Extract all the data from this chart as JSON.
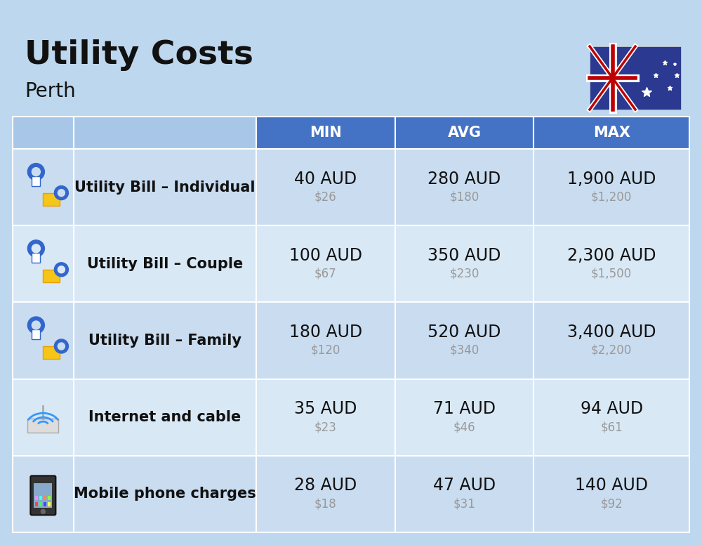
{
  "title": "Utility Costs",
  "subtitle": "Perth",
  "bg_color": "#BDD7EE",
  "header_bg_color": "#4472C4",
  "header_text_color": "#FFFFFF",
  "row_colors": [
    "#C9DCF0",
    "#D9E8F5"
  ],
  "white_line": "#FFFFFF",
  "text_dark": "#111111",
  "text_gray": "#999999",
  "col_headers": [
    "MIN",
    "AVG",
    "MAX"
  ],
  "rows": [
    {
      "label": "Utility Bill – Individual",
      "icon": "utility",
      "min_aud": "40 AUD",
      "min_usd": "$26",
      "avg_aud": "280 AUD",
      "avg_usd": "$180",
      "max_aud": "1,900 AUD",
      "max_usd": "$1,200"
    },
    {
      "label": "Utility Bill – Couple",
      "icon": "utility",
      "min_aud": "100 AUD",
      "min_usd": "$67",
      "avg_aud": "350 AUD",
      "avg_usd": "$230",
      "max_aud": "2,300 AUD",
      "max_usd": "$1,500"
    },
    {
      "label": "Utility Bill – Family",
      "icon": "utility",
      "min_aud": "180 AUD",
      "min_usd": "$120",
      "avg_aud": "520 AUD",
      "avg_usd": "$340",
      "max_aud": "3,400 AUD",
      "max_usd": "$2,200"
    },
    {
      "label": "Internet and cable",
      "icon": "internet",
      "min_aud": "35 AUD",
      "min_usd": "$23",
      "avg_aud": "71 AUD",
      "avg_usd": "$46",
      "max_aud": "94 AUD",
      "max_usd": "$61"
    },
    {
      "label": "Mobile phone charges",
      "icon": "mobile",
      "min_aud": "28 AUD",
      "min_usd": "$18",
      "avg_aud": "47 AUD",
      "avg_usd": "$31",
      "max_aud": "140 AUD",
      "max_usd": "$92"
    }
  ],
  "title_fontsize": 34,
  "subtitle_fontsize": 20,
  "header_fontsize": 15,
  "label_fontsize": 15,
  "value_fontsize": 17,
  "subvalue_fontsize": 12,
  "flag_blue": "#2B3990",
  "flag_red": "#BE0000"
}
